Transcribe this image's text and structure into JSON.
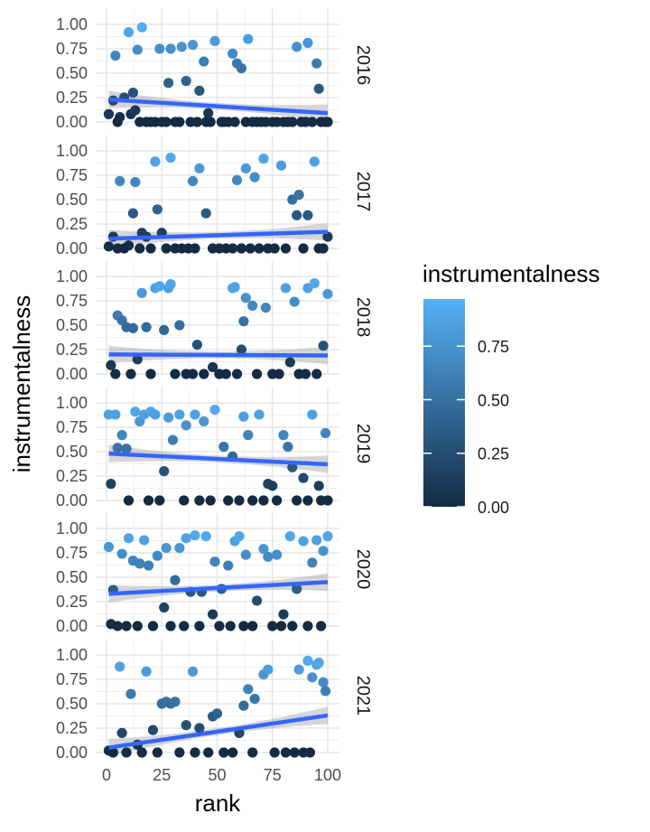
{
  "chart_data": {
    "type": "scatter",
    "facet_by": "year",
    "xlabel": "rank",
    "ylabel": "instrumentalness",
    "xlim": [
      0,
      100
    ],
    "ylim": [
      0,
      1
    ],
    "x_ticks": [
      "0",
      "25",
      "50",
      "75",
      "100"
    ],
    "y_ticks": [
      "0.00",
      "0.25",
      "0.50",
      "0.75",
      "1.00"
    ],
    "legend": {
      "title": "instrumentalness",
      "position": "right",
      "ticks": [
        "0.00",
        "0.25",
        "0.50",
        "0.75"
      ],
      "color_low": "#132B43",
      "color_high": "#56B1F7"
    },
    "trend_color": "#3366FF",
    "panels": [
      {
        "label": "2016",
        "trend": [
          0.23,
          0.09
        ],
        "points": [
          [
            1,
            0.08
          ],
          [
            3,
            0.22
          ],
          [
            4,
            0.68
          ],
          [
            6,
            0.05
          ],
          [
            8,
            0.25
          ],
          [
            10,
            0.92
          ],
          [
            11,
            0.08
          ],
          [
            12,
            0.3
          ],
          [
            13,
            0.12
          ],
          [
            14,
            0.74
          ],
          [
            16,
            0.97
          ],
          [
            22,
            0.0
          ],
          [
            24,
            0.75
          ],
          [
            28,
            0.4
          ],
          [
            29,
            0.75
          ],
          [
            34,
            0.77
          ],
          [
            36,
            0.42
          ],
          [
            39,
            0.79
          ],
          [
            42,
            0.32
          ],
          [
            44,
            0.62
          ],
          [
            46,
            0.09
          ],
          [
            49,
            0.83
          ],
          [
            53,
            0.0
          ],
          [
            57,
            0.7
          ],
          [
            59,
            0.6
          ],
          [
            61,
            0.55
          ],
          [
            64,
            0.85
          ],
          [
            86,
            0.77
          ],
          [
            91,
            0.81
          ],
          [
            95,
            0.6
          ],
          [
            96,
            0.34
          ],
          [
            99,
            0.0
          ],
          [
            5,
            0.0
          ],
          [
            15,
            0.0
          ],
          [
            18,
            0.0
          ],
          [
            20,
            0.0
          ],
          [
            25,
            0.0
          ],
          [
            27,
            0.0
          ],
          [
            31,
            0.0
          ],
          [
            33,
            0.0
          ],
          [
            38,
            0.0
          ],
          [
            41,
            0.0
          ],
          [
            45,
            0.0
          ],
          [
            47,
            0.0
          ],
          [
            52,
            0.0
          ],
          [
            55,
            0.0
          ],
          [
            58,
            0.0
          ],
          [
            63,
            0.0
          ],
          [
            66,
            0.0
          ],
          [
            68,
            0.0
          ],
          [
            70,
            0.0
          ],
          [
            72,
            0.0
          ],
          [
            75,
            0.0
          ],
          [
            77,
            0.0
          ],
          [
            80,
            0.0
          ],
          [
            82,
            0.0
          ],
          [
            84,
            0.0
          ],
          [
            88,
            0.0
          ],
          [
            90,
            0.0
          ],
          [
            93,
            0.0
          ],
          [
            97,
            0.0
          ],
          [
            100,
            0.0
          ]
        ]
      },
      {
        "label": "2017",
        "trend": [
          0.1,
          0.17
        ],
        "points": [
          [
            1,
            0.02
          ],
          [
            3,
            0.12
          ],
          [
            6,
            0.69
          ],
          [
            10,
            0.03
          ],
          [
            12,
            0.36
          ],
          [
            13,
            0.68
          ],
          [
            16,
            0.16
          ],
          [
            18,
            0.12
          ],
          [
            22,
            0.89
          ],
          [
            23,
            0.4
          ],
          [
            25,
            0.16
          ],
          [
            29,
            0.93
          ],
          [
            39,
            0.69
          ],
          [
            42,
            0.82
          ],
          [
            45,
            0.36
          ],
          [
            59,
            0.7
          ],
          [
            63,
            0.82
          ],
          [
            67,
            0.73
          ],
          [
            71,
            0.92
          ],
          [
            79,
            0.85
          ],
          [
            84,
            0.5
          ],
          [
            86,
            0.34
          ],
          [
            87,
            0.55
          ],
          [
            91,
            0.34
          ],
          [
            94,
            0.89
          ],
          [
            100,
            0.12
          ],
          [
            5,
            0.0
          ],
          [
            8,
            0.0
          ],
          [
            15,
            0.0
          ],
          [
            20,
            0.0
          ],
          [
            27,
            0.0
          ],
          [
            31,
            0.0
          ],
          [
            34,
            0.0
          ],
          [
            37,
            0.0
          ],
          [
            40,
            0.0
          ],
          [
            48,
            0.0
          ],
          [
            51,
            0.0
          ],
          [
            54,
            0.0
          ],
          [
            57,
            0.0
          ],
          [
            61,
            0.0
          ],
          [
            65,
            0.0
          ],
          [
            69,
            0.0
          ],
          [
            73,
            0.0
          ],
          [
            76,
            0.0
          ],
          [
            81,
            0.0
          ],
          [
            89,
            0.0
          ],
          [
            96,
            0.0
          ],
          [
            98,
            0.0
          ]
        ]
      },
      {
        "label": "2018",
        "trend": [
          0.2,
          0.19
        ],
        "points": [
          [
            2,
            0.09
          ],
          [
            5,
            0.6
          ],
          [
            7,
            0.55
          ],
          [
            9,
            0.48
          ],
          [
            12,
            0.47
          ],
          [
            14,
            0.15
          ],
          [
            16,
            0.83
          ],
          [
            18,
            0.48
          ],
          [
            22,
            0.88
          ],
          [
            24,
            0.9
          ],
          [
            26,
            0.45
          ],
          [
            28,
            0.88
          ],
          [
            29,
            0.92
          ],
          [
            33,
            0.5
          ],
          [
            41,
            0.3
          ],
          [
            48,
            0.07
          ],
          [
            57,
            0.88
          ],
          [
            58,
            0.89
          ],
          [
            61,
            0.25
          ],
          [
            62,
            0.54
          ],
          [
            63,
            0.78
          ],
          [
            66,
            0.7
          ],
          [
            72,
            0.68
          ],
          [
            81,
            0.88
          ],
          [
            83,
            0.12
          ],
          [
            85,
            0.74
          ],
          [
            91,
            0.88
          ],
          [
            94,
            0.93
          ],
          [
            98,
            0.29
          ],
          [
            100,
            0.82
          ],
          [
            4,
            0.0
          ],
          [
            11,
            0.0
          ],
          [
            20,
            0.0
          ],
          [
            31,
            0.0
          ],
          [
            36,
            0.0
          ],
          [
            39,
            0.0
          ],
          [
            44,
            0.0
          ],
          [
            51,
            0.0
          ],
          [
            54,
            0.0
          ],
          [
            59,
            0.0
          ],
          [
            68,
            0.0
          ],
          [
            75,
            0.0
          ],
          [
            78,
            0.0
          ],
          [
            87,
            0.0
          ],
          [
            90,
            0.0
          ],
          [
            95,
            0.0
          ]
        ]
      },
      {
        "label": "2019",
        "trend": [
          0.48,
          0.37
        ],
        "points": [
          [
            1,
            0.88
          ],
          [
            2,
            0.17
          ],
          [
            4,
            0.88
          ],
          [
            5,
            0.54
          ],
          [
            7,
            0.67
          ],
          [
            9,
            0.53
          ],
          [
            13,
            0.91
          ],
          [
            15,
            0.81
          ],
          [
            17,
            0.88
          ],
          [
            20,
            0.91
          ],
          [
            22,
            0.88
          ],
          [
            26,
            0.3
          ],
          [
            28,
            0.85
          ],
          [
            30,
            0.62
          ],
          [
            33,
            0.88
          ],
          [
            36,
            0.77
          ],
          [
            40,
            0.88
          ],
          [
            44,
            0.81
          ],
          [
            49,
            0.93
          ],
          [
            53,
            0.55
          ],
          [
            57,
            0.45
          ],
          [
            62,
            0.86
          ],
          [
            64,
            0.67
          ],
          [
            69,
            0.88
          ],
          [
            73,
            0.17
          ],
          [
            75,
            0.15
          ],
          [
            80,
            0.67
          ],
          [
            82,
            0.55
          ],
          [
            84,
            0.34
          ],
          [
            89,
            0.23
          ],
          [
            93,
            0.88
          ],
          [
            96,
            0.15
          ],
          [
            99,
            0.69
          ],
          [
            10,
            0.0
          ],
          [
            19,
            0.0
          ],
          [
            24,
            0.0
          ],
          [
            35,
            0.0
          ],
          [
            42,
            0.0
          ],
          [
            47,
            0.0
          ],
          [
            55,
            0.0
          ],
          [
            60,
            0.0
          ],
          [
            66,
            0.0
          ],
          [
            71,
            0.0
          ],
          [
            77,
            0.0
          ],
          [
            86,
            0.0
          ],
          [
            91,
            0.0
          ],
          [
            97,
            0.0
          ],
          [
            100,
            0.0
          ]
        ]
      },
      {
        "label": "2020",
        "trend": [
          0.33,
          0.45
        ],
        "points": [
          [
            1,
            0.81
          ],
          [
            3,
            0.37
          ],
          [
            7,
            0.74
          ],
          [
            10,
            0.9
          ],
          [
            12,
            0.67
          ],
          [
            15,
            0.64
          ],
          [
            17,
            0.88
          ],
          [
            19,
            0.62
          ],
          [
            23,
            0.72
          ],
          [
            26,
            0.19
          ],
          [
            27,
            0.8
          ],
          [
            31,
            0.47
          ],
          [
            33,
            0.8
          ],
          [
            36,
            0.9
          ],
          [
            38,
            0.35
          ],
          [
            40,
            0.93
          ],
          [
            43,
            0.35
          ],
          [
            45,
            0.92
          ],
          [
            48,
            0.12
          ],
          [
            49,
            0.66
          ],
          [
            52,
            0.38
          ],
          [
            55,
            0.62
          ],
          [
            58,
            0.87
          ],
          [
            60,
            0.92
          ],
          [
            63,
            0.73
          ],
          [
            68,
            0.26
          ],
          [
            71,
            0.79
          ],
          [
            73,
            0.71
          ],
          [
            77,
            0.73
          ],
          [
            80,
            0.12
          ],
          [
            83,
            0.92
          ],
          [
            86,
            0.38
          ],
          [
            89,
            0.87
          ],
          [
            93,
            0.65
          ],
          [
            95,
            0.88
          ],
          [
            98,
            0.77
          ],
          [
            100,
            0.92
          ],
          [
            2,
            0.02
          ],
          [
            5,
            0.0
          ],
          [
            9,
            0.0
          ],
          [
            14,
            0.0
          ],
          [
            21,
            0.0
          ],
          [
            29,
            0.0
          ],
          [
            35,
            0.0
          ],
          [
            42,
            0.0
          ],
          [
            51,
            0.0
          ],
          [
            56,
            0.0
          ],
          [
            62,
            0.0
          ],
          [
            66,
            0.0
          ],
          [
            75,
            0.0
          ],
          [
            79,
            0.0
          ],
          [
            84,
            0.0
          ],
          [
            91,
            0.0
          ],
          [
            97,
            0.0
          ]
        ]
      },
      {
        "label": "2021",
        "trend": [
          0.05,
          0.38
        ],
        "points": [
          [
            1,
            0.02
          ],
          [
            6,
            0.88
          ],
          [
            7,
            0.2
          ],
          [
            11,
            0.6
          ],
          [
            14,
            0.08
          ],
          [
            18,
            0.83
          ],
          [
            21,
            0.23
          ],
          [
            25,
            0.5
          ],
          [
            27,
            0.52
          ],
          [
            29,
            0.5
          ],
          [
            31,
            0.52
          ],
          [
            36,
            0.28
          ],
          [
            39,
            0.83
          ],
          [
            42,
            0.25
          ],
          [
            48,
            0.37
          ],
          [
            50,
            0.4
          ],
          [
            60,
            0.2
          ],
          [
            62,
            0.48
          ],
          [
            64,
            0.65
          ],
          [
            67,
            0.55
          ],
          [
            71,
            0.8
          ],
          [
            73,
            0.85
          ],
          [
            87,
            0.85
          ],
          [
            91,
            0.94
          ],
          [
            93,
            0.77
          ],
          [
            95,
            0.9
          ],
          [
            96,
            0.92
          ],
          [
            98,
            0.72
          ],
          [
            99,
            0.63
          ],
          [
            3,
            0.0
          ],
          [
            9,
            0.0
          ],
          [
            16,
            0.0
          ],
          [
            23,
            0.0
          ],
          [
            33,
            0.0
          ],
          [
            40,
            0.0
          ],
          [
            46,
            0.0
          ],
          [
            53,
            0.0
          ],
          [
            57,
            0.0
          ],
          [
            66,
            0.0
          ],
          [
            76,
            0.0
          ],
          [
            81,
            0.0
          ],
          [
            85,
            0.0
          ],
          [
            89,
            0.0
          ],
          [
            92,
            0.0
          ]
        ]
      }
    ]
  }
}
